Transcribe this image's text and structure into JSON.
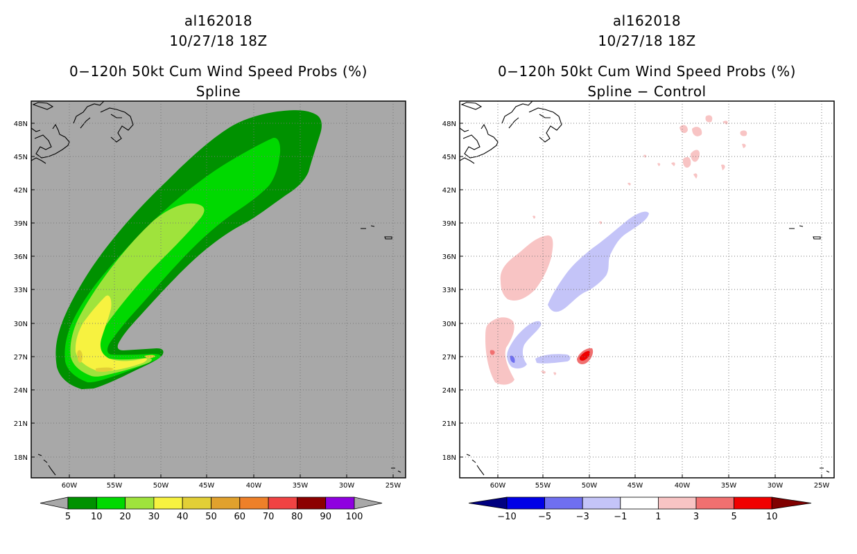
{
  "left": {
    "storm_id": "al162018",
    "datetime": "10/27/18 18Z",
    "product": "0−120h 50kt Cum Wind Speed Probs (%)",
    "subtitle": "Spline",
    "background_color": "#a8a8a8",
    "colorbar": {
      "labels": [
        "5",
        "10",
        "20",
        "30",
        "40",
        "50",
        "60",
        "70",
        "80",
        "90",
        "100"
      ],
      "colors": [
        "#009100",
        "#00d900",
        "#9fe33c",
        "#f7f240",
        "#e2cf36",
        "#e1a12d",
        "#ee8029",
        "#f04343",
        "#8c0000",
        "#8f00e0"
      ]
    }
  },
  "right": {
    "storm_id": "al162018",
    "datetime": "10/27/18 18Z",
    "product": "0−120h 50kt Cum Wind Speed Probs (%)",
    "subtitle": "Spline − Control",
    "background_color": "#ffffff",
    "colorbar": {
      "labels": [
        "−10",
        "−5",
        "−3",
        "−1",
        "1",
        "3",
        "5",
        "10"
      ],
      "colors": [
        "#0000e6",
        "#6f6ff0",
        "#c4c4f8",
        "#ffffff",
        "#f8c4c4",
        "#f07070",
        "#f00000"
      ],
      "under_color": "#000080",
      "over_color": "#800000"
    }
  },
  "lat_ticks": [
    "48N",
    "45N",
    "42N",
    "39N",
    "36N",
    "33N",
    "30N",
    "27N",
    "24N",
    "21N",
    "18N"
  ],
  "lon_ticks": [
    "60W",
    "55W",
    "50W",
    "45W",
    "40W",
    "35W",
    "30W",
    "25W"
  ],
  "contour_colors": {
    "green_dark": "#009100",
    "green": "#00d900",
    "yellow_green": "#9fe33c",
    "yellow": "#f7f240",
    "gold": "#e2cf36",
    "blue_light": "#c4c4f8",
    "blue_mid": "#6f6ff0",
    "pink": "#f8c4c4",
    "red_light": "#f07070",
    "red": "#f00000"
  }
}
